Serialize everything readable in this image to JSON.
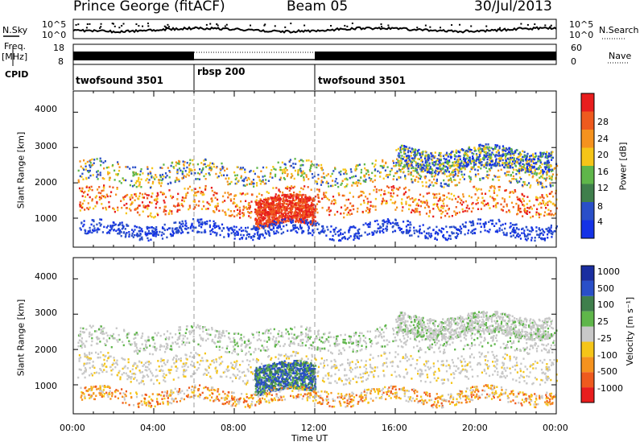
{
  "header": {
    "station": "Prince George (fitACF)",
    "beam": "Beam 05",
    "date": "30/Jul/2013"
  },
  "left_labels": {
    "nsky": "N.Sky",
    "freq": "Freq.",
    "freq_unit": "[MHz]",
    "cpid": "CPID"
  },
  "right_labels": {
    "nsearch": "N.Search",
    "nave": "Nave"
  },
  "noise_ticks": {
    "left_top": "10^5",
    "left_bottom": "10^0",
    "right_top": "10^5",
    "right_bottom": "10^0"
  },
  "freq_ticks": {
    "left_top": "18",
    "left_bottom": "8",
    "right_top": "60",
    "right_bottom": "0"
  },
  "cpid_segments": [
    {
      "label": "twofsound 3501",
      "start_hr": 0,
      "end_hr": 6
    },
    {
      "label": "rbsp 200",
      "start_hr": 6,
      "end_hr": 12
    },
    {
      "label": "twofsound 3501",
      "start_hr": 12,
      "end_hr": 24
    }
  ],
  "colors": {
    "power_scale": [
      "#1432e6",
      "#2a4fc8",
      "#3f7f4c",
      "#5fb64a",
      "#f5c518",
      "#f5921e",
      "#ee5a1e",
      "#e81d1d"
    ],
    "velocity_scale": [
      "#e81d1d",
      "#ee5a1e",
      "#f5921e",
      "#f5c518",
      "#c8c8c8",
      "#5fb64a",
      "#3f7f4c",
      "#2a4fc8",
      "#1a2ea0"
    ]
  },
  "chart_data": [
    {
      "type": "heatmap",
      "name": "power",
      "ylabel": "Slant Range [km]",
      "yticks": [
        "1000",
        "2000",
        "3000",
        "4000"
      ],
      "ylim": [
        180,
        4600
      ],
      "xlim_hr": [
        0,
        24
      ],
      "colorbar_label": "Power [dB]",
      "colorbar_ticks": [
        "4",
        "8",
        "12",
        "16",
        "20",
        "24",
        "28"
      ]
    },
    {
      "type": "heatmap",
      "name": "velocity",
      "ylabel": "Slant Range [km]",
      "yticks": [
        "1000",
        "2000",
        "3000",
        "4000"
      ],
      "ylim": [
        180,
        4600
      ],
      "xlim_hr": [
        0,
        24
      ],
      "colorbar_label": "Velocity [m s⁻¹]",
      "colorbar_ticks": [
        "-1000",
        "-500",
        "-100",
        "-25",
        "25",
        "100",
        "500",
        "1000"
      ]
    }
  ],
  "x_axis": {
    "label": "Time UT",
    "ticks": [
      "00:00",
      "04:00",
      "08:00",
      "12:00",
      "16:00",
      "20:00",
      "00:00"
    ]
  }
}
